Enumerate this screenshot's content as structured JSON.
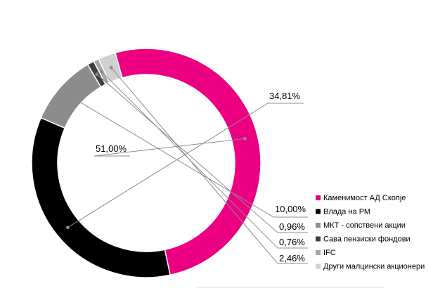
{
  "chart_data": {
    "type": "pie",
    "variant": "donut",
    "title": "",
    "slices": [
      {
        "name": "Каменимост АД Скопје",
        "value": 51.0,
        "label": "51,00%",
        "color": "#ec0081"
      },
      {
        "name": "Влада на РМ",
        "value": 34.81,
        "label": "34,81%",
        "color": "#000000"
      },
      {
        "name": "МКТ - сопствени акции",
        "value": 10.0,
        "label": "10,00%",
        "color": "#8c8c8c"
      },
      {
        "name": "Сава пензиски фондови",
        "value": 0.96,
        "label": "0,96%",
        "color": "#404040"
      },
      {
        "name": "IFC",
        "value": 0.76,
        "label": "0,76%",
        "color": "#a6a6a6"
      },
      {
        "name": "Други малцински акционери",
        "value": 2.46,
        "label": "2,46%",
        "color": "#d0d0d0"
      }
    ],
    "legend_position": "right-bottom",
    "label_connector_color": "#8c8c8c"
  }
}
